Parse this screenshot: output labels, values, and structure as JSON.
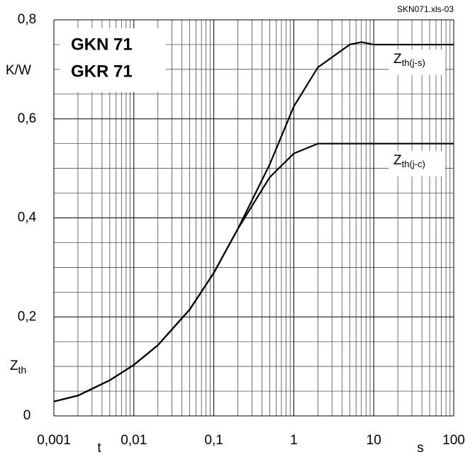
{
  "chart_data": {
    "type": "line",
    "file_label": "SKN071.xls-03",
    "title_lines": [
      "GKN 71",
      "GKR 71"
    ],
    "y_unit": "K/W",
    "ylabel": "Zth",
    "xlabel": "t",
    "x_unit": "s",
    "xscale": "log",
    "grid": true,
    "xlim": [
      0.001,
      100
    ],
    "xticks": [
      {
        "value": 0.001,
        "label": "0,001"
      },
      {
        "value": 0.01,
        "label": "0,01"
      },
      {
        "value": 0.1,
        "label": "0,1"
      },
      1,
      10,
      100
    ],
    "ylim": [
      0,
      0.8
    ],
    "yticks": [
      0,
      {
        "value": 0.2,
        "label": "0,2"
      },
      {
        "value": 0.4,
        "label": "0,4"
      },
      {
        "value": 0.6,
        "label": "0,6"
      },
      {
        "value": 0.8,
        "label": "0,8"
      }
    ],
    "x": [
      0.001,
      0.002,
      0.005,
      0.01,
      0.02,
      0.05,
      0.1,
      0.2,
      0.5,
      1,
      2,
      5,
      7,
      10,
      100
    ],
    "series": [
      {
        "name": "Zth(j-s)",
        "color": "#000000",
        "values": [
          0.029,
          0.041,
          0.072,
          0.103,
          0.143,
          0.215,
          0.289,
          0.378,
          0.508,
          0.625,
          0.704,
          0.75,
          0.755,
          0.75,
          0.75
        ]
      },
      {
        "name": "Zth(j-c)",
        "color": "#000000",
        "values": [
          0.029,
          0.041,
          0.072,
          0.103,
          0.143,
          0.215,
          0.289,
          0.378,
          0.482,
          0.53,
          0.55,
          0.55,
          0.55,
          0.55,
          0.55
        ]
      }
    ]
  }
}
